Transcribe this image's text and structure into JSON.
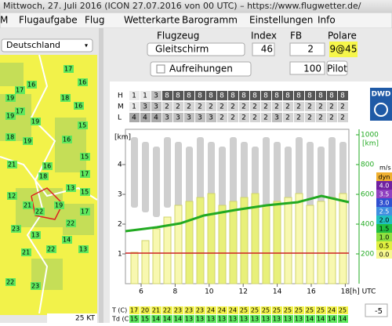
{
  "window_title": "Mittwoch, 27. Juli 2016 (ICON 27.07.2016 von 00 UTC) – https://www.flugwetter.de/",
  "menu": [
    "M",
    "Flugaufgabe",
    "Flug",
    "Wetterkarte",
    "Barogramm",
    "Einstellungen",
    "Info"
  ],
  "region_select": "Deutschland",
  "controls": {
    "aircraft_label": "Flugzeug",
    "index_label": "Index",
    "fb_label": "FB",
    "polare_label": "Polare",
    "aircraft": "Gleitschirm",
    "index": 46,
    "fb": 2,
    "polare": "9@45",
    "aufreihungen": "Aufreihungen",
    "value": 100,
    "pilot": "Pilot"
  },
  "map": {
    "labels": [
      "19",
      "17",
      "16",
      "19",
      "17",
      "19",
      "18",
      "19",
      "17",
      "16",
      "18",
      "16",
      "15",
      "16",
      "15",
      "21",
      "16",
      "17",
      "13",
      "18",
      "15",
      "12",
      "21",
      "22",
      "19",
      "17",
      "22",
      "23",
      "13",
      "22",
      "21",
      "14",
      "13",
      "22",
      "23"
    ],
    "scale": "25 KT"
  },
  "meteogram": {
    "logo": "DWD",
    "cloud_rows": [
      {
        "name": "H",
        "values": [
          1,
          1,
          3,
          8,
          8,
          8,
          8,
          8,
          8,
          8,
          8,
          8,
          8,
          8,
          8,
          8,
          8,
          8,
          8,
          8
        ]
      },
      {
        "name": "M",
        "values": [
          1,
          3,
          3,
          2,
          2,
          2,
          2,
          2,
          2,
          2,
          2,
          2,
          2,
          2,
          2,
          2,
          2,
          2,
          2,
          2
        ]
      },
      {
        "name": "L",
        "values": [
          4,
          4,
          4,
          3,
          3,
          3,
          3,
          3,
          2,
          2,
          2,
          2,
          2,
          3,
          2,
          2,
          2,
          2,
          2,
          2
        ]
      }
    ],
    "y_unit": "[km]",
    "yticks": [
      1,
      2,
      3,
      4
    ],
    "y2_unit": "[km]",
    "y2ticks": [
      200,
      400,
      600,
      800,
      1000
    ],
    "xticks": [
      6,
      8,
      10,
      12,
      14,
      16,
      18
    ],
    "x_unit": "[h] UTC",
    "legend_unit": "m/s",
    "legend": [
      "dyn",
      "4.0",
      "3.5",
      "3.0",
      "2.5",
      "2.0",
      "1.5",
      "1.0",
      "0.5",
      "0.0"
    ],
    "t_label": "T (C)",
    "t": [
      17,
      20,
      21,
      22,
      23,
      23,
      23,
      24,
      24,
      24,
      25,
      25,
      25,
      25,
      25,
      25,
      25,
      25,
      24,
      25
    ],
    "td_label": "Td (C)",
    "td": [
      15,
      15,
      14,
      14,
      14,
      13,
      13,
      13,
      13,
      13,
      13,
      13,
      13,
      13,
      13,
      13,
      14,
      14,
      14,
      14
    ],
    "offset": -5
  }
}
